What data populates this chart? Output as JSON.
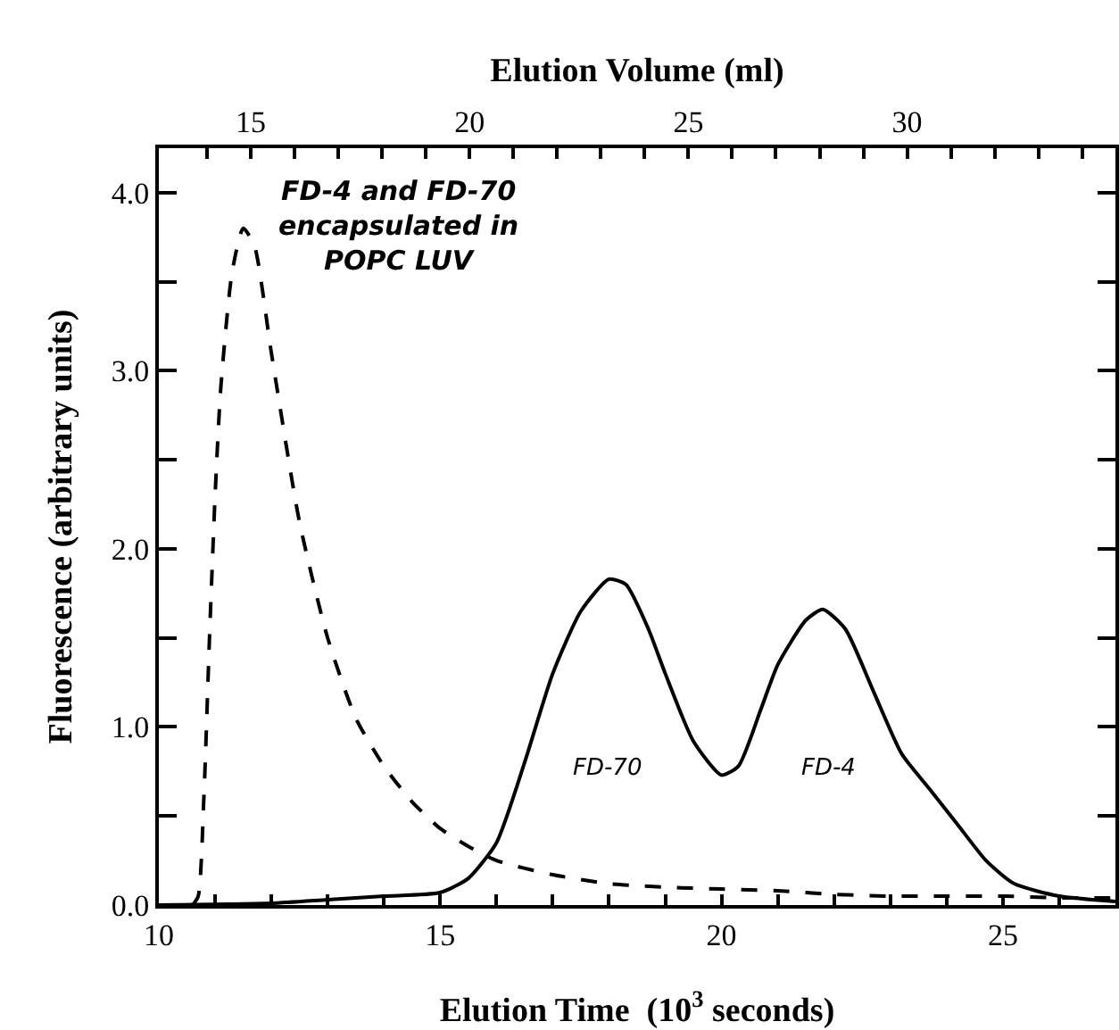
{
  "chart_data": {
    "type": "line",
    "xlabel": "Elution Time  (10$^{3}$ seconds)",
    "ylabel": "Fluorescence (arbitrary units)",
    "x2label": "Elution Volume (ml)",
    "xlim": [
      10,
      27
    ],
    "xticks": [
      10,
      {
        "value": 11,
        "label": null
      },
      {
        "value": 12,
        "label": null
      },
      {
        "value": 13,
        "label": null
      },
      {
        "value": 14,
        "label": null
      },
      15,
      {
        "value": 16,
        "label": null
      },
      {
        "value": 17,
        "label": null
      },
      {
        "value": 18,
        "label": null
      },
      {
        "value": 19,
        "label": null
      },
      20,
      {
        "value": 21,
        "label": null
      },
      {
        "value": 22,
        "label": null
      },
      {
        "value": 23,
        "label": null
      },
      {
        "value": 24,
        "label": null
      },
      25,
      {
        "value": 26,
        "label": null
      }
    ],
    "x2lim": [
      12.9,
      34.76
    ],
    "x2ticks": [
      {
        "value": 14,
        "label": null
      },
      15,
      {
        "value": 16,
        "label": null
      },
      {
        "value": 17,
        "label": null
      },
      {
        "value": 18,
        "label": null
      },
      {
        "value": 19,
        "label": null
      },
      20,
      {
        "value": 21,
        "label": null
      },
      {
        "value": 22,
        "label": null
      },
      {
        "value": 23,
        "label": null
      },
      {
        "value": 24,
        "label": null
      },
      25,
      {
        "value": 26,
        "label": null
      },
      {
        "value": 27,
        "label": null
      },
      {
        "value": 28,
        "label": null
      },
      {
        "value": 29,
        "label": null
      },
      30,
      {
        "value": 31,
        "label": null
      },
      {
        "value": 32,
        "label": null
      },
      {
        "value": 33,
        "label": null
      },
      {
        "value": 34,
        "label": null
      }
    ],
    "ylim": [
      0,
      4.25
    ],
    "yticks": [
      {
        "value": 0,
        "label": "0.0"
      },
      {
        "value": 0.5,
        "label": null
      },
      {
        "value": 1,
        "label": "1.0"
      },
      {
        "value": 1.5,
        "label": null
      },
      {
        "value": 2,
        "label": "2.0"
      },
      {
        "value": 2.5,
        "label": null
      },
      {
        "value": 3,
        "label": "3.0"
      },
      {
        "value": 3.5,
        "label": null
      },
      {
        "value": 4,
        "label": "4.0"
      }
    ],
    "grid": false,
    "marker": "none",
    "annotations": [
      "FD-4 and FD-70\nencapsulated in\nPOPC LUV",
      "FD-70",
      "FD-4"
    ],
    "series": [
      {
        "color": "#000000",
        "line_style": "dashed",
        "x": [
          10.6,
          10.7,
          10.8,
          10.9,
          11.0,
          11.1,
          11.3,
          11.5,
          11.7,
          12.0,
          12.5,
          13,
          13.5,
          14,
          14.5,
          15,
          15.5,
          16,
          17,
          18,
          19,
          20,
          21,
          22,
          23,
          24,
          25,
          26,
          27
        ],
        "values": [
          0,
          0.05,
          0.6,
          1.5,
          2.3,
          2.9,
          3.55,
          3.8,
          3.7,
          3.1,
          2.15,
          1.5,
          1.05,
          0.78,
          0.58,
          0.43,
          0.33,
          0.25,
          0.17,
          0.12,
          0.1,
          0.09,
          0.08,
          0.06,
          0.05,
          0.05,
          0.05,
          0.04,
          0.04
        ]
      },
      {
        "color": "#000000",
        "line_style": "solid",
        "x": [
          10,
          12,
          13,
          14,
          15,
          15.5,
          16,
          16.5,
          17,
          17.5,
          18,
          18.3,
          18.7,
          19,
          19.5,
          20,
          20.3,
          20.7,
          21,
          21.5,
          21.8,
          22.2,
          22.7,
          23.2,
          23.7,
          24.2,
          24.7,
          25.2,
          26,
          27
        ],
        "values": [
          0,
          0.01,
          0.03,
          0.05,
          0.07,
          0.15,
          0.35,
          0.8,
          1.3,
          1.65,
          1.83,
          1.8,
          1.55,
          1.3,
          0.92,
          0.73,
          0.78,
          1.1,
          1.35,
          1.6,
          1.66,
          1.55,
          1.2,
          0.85,
          0.65,
          0.45,
          0.25,
          0.12,
          0.05,
          0.02
        ]
      }
    ]
  }
}
